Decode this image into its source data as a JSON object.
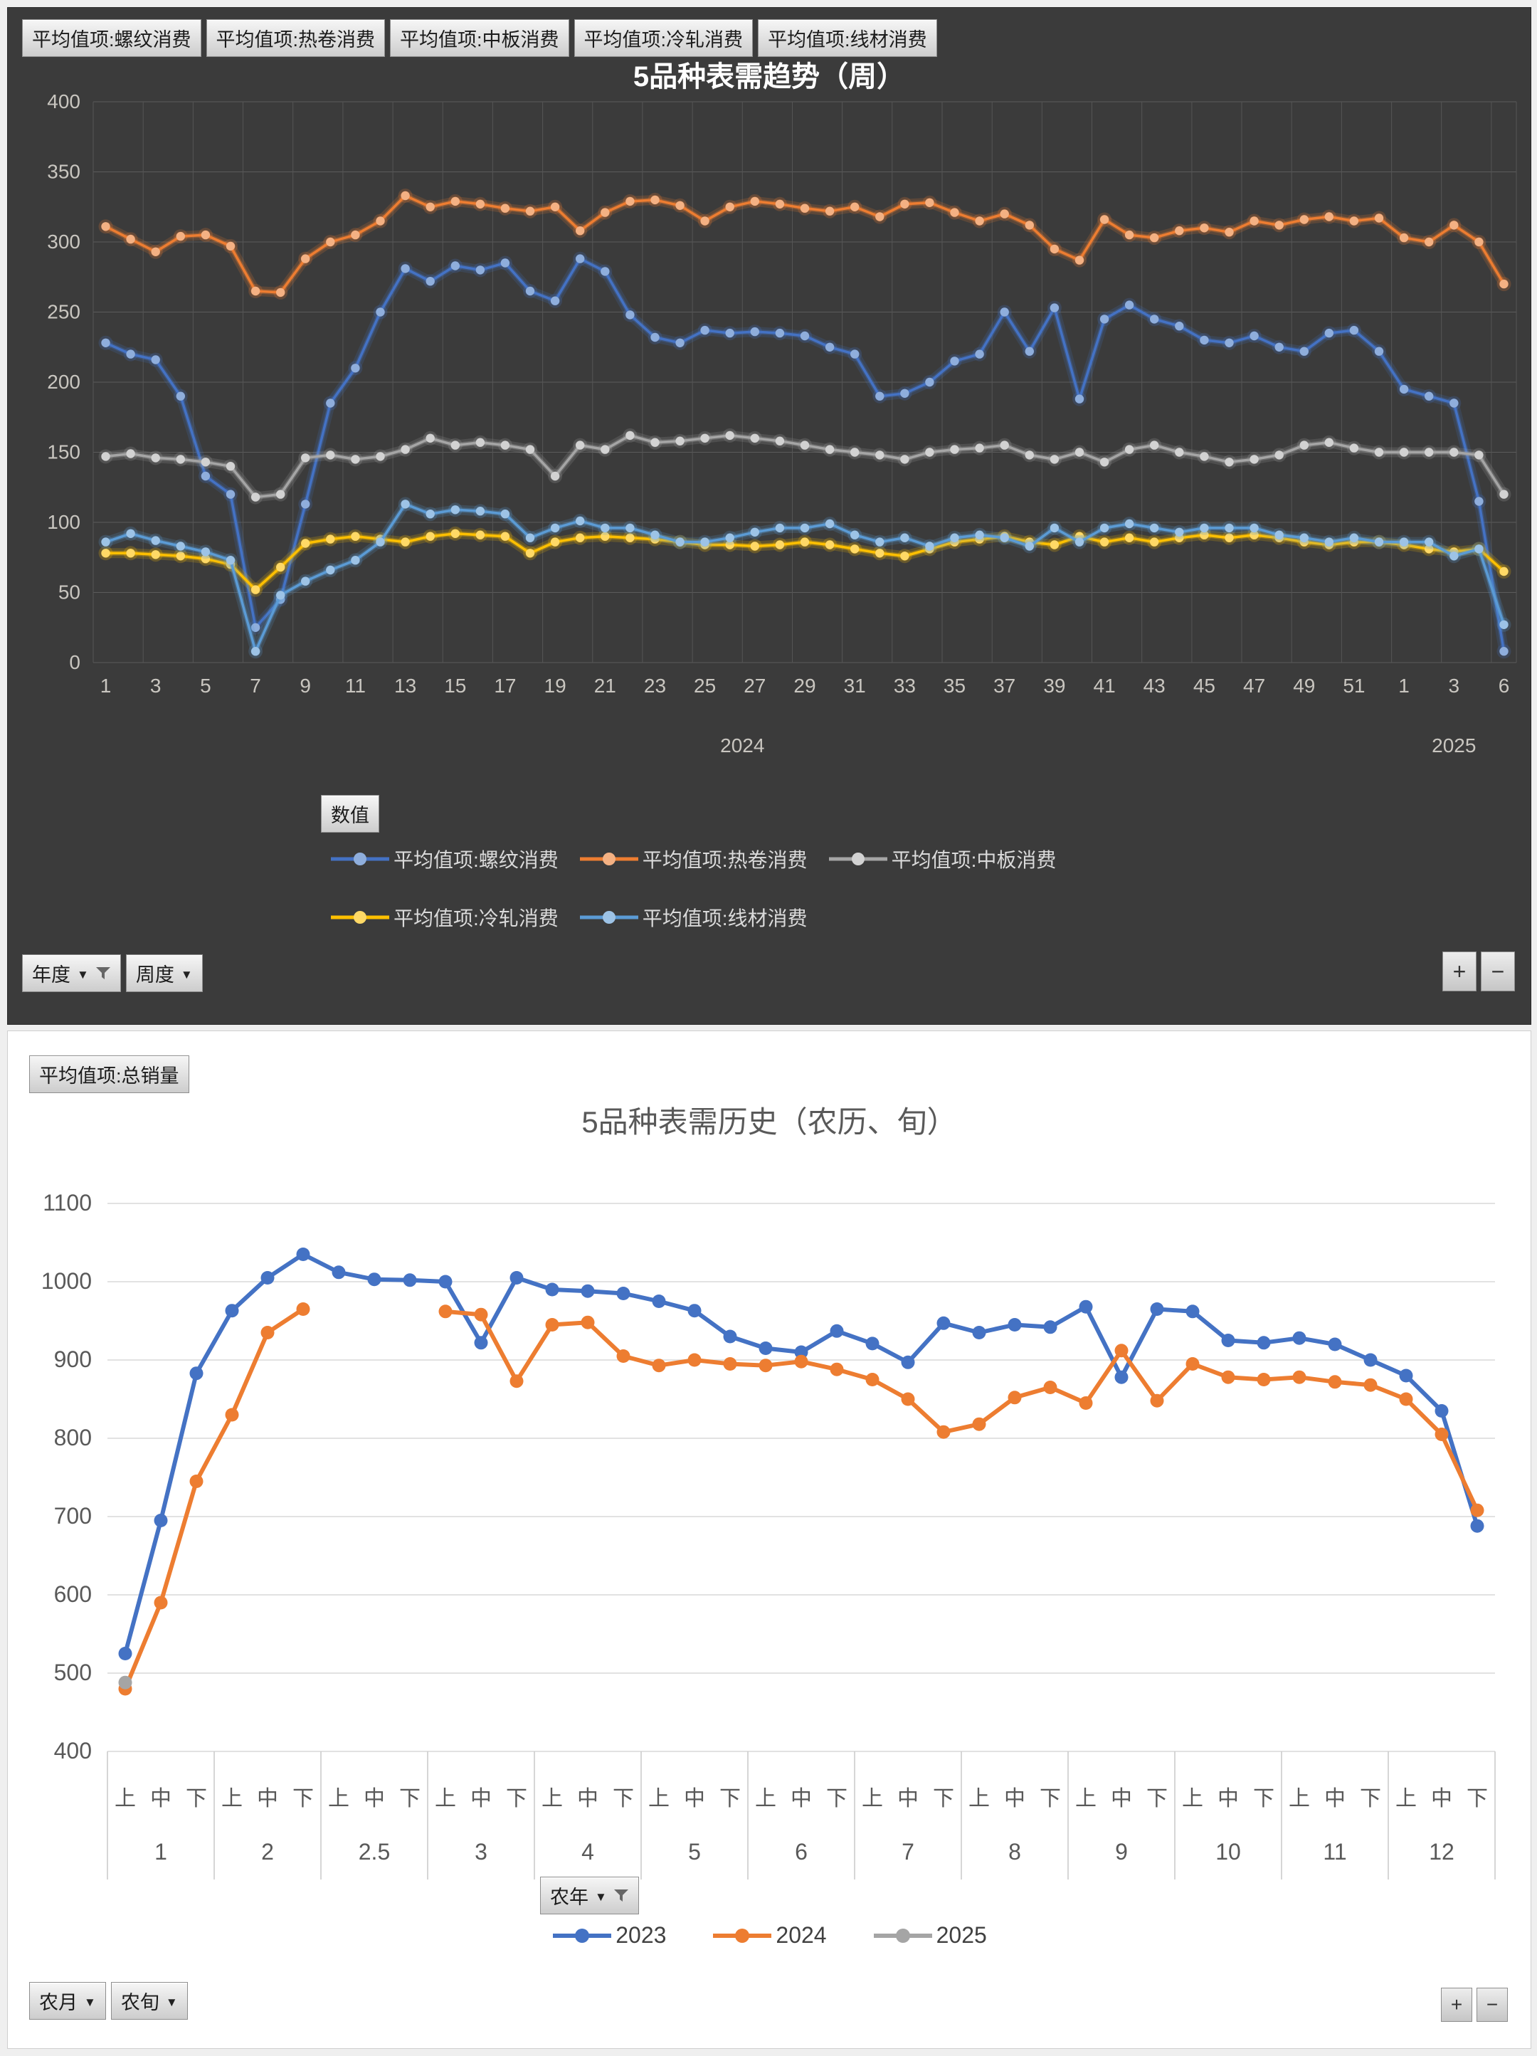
{
  "top_panel": {
    "field_buttons": [
      "平均值项:螺纹消费",
      "平均值项:热卷消费",
      "平均值项:中板消费",
      "平均值项:冷轧消费",
      "平均值项:线材消费"
    ],
    "legend_button": "数值",
    "axis_field_buttons": [
      {
        "label": "年度",
        "filtered": true
      },
      {
        "label": "周度",
        "filtered": false
      }
    ],
    "zoom_in": "+",
    "zoom_out": "−",
    "background": "#3B3B3B",
    "text_color": "#C9C6C0"
  },
  "bottom_panel": {
    "field_button": "平均值项:总销量",
    "filter_field_button": {
      "label": "农年",
      "filtered": true
    },
    "axis_field_buttons": [
      {
        "label": "农月",
        "filtered": false
      },
      {
        "label": "农旬",
        "filtered": false
      }
    ],
    "zoom_in": "+",
    "zoom_out": "−",
    "background": "#FFFFFF",
    "text_color": "#595959"
  },
  "chart_data": [
    {
      "id": "weekly-trend",
      "type": "line",
      "title": "5品种表需趋势（周）",
      "ylabel": "",
      "xlabel": "",
      "ylim": [
        0,
        400
      ],
      "ytick_step": 50,
      "grid": "both",
      "legend_position": "bottom",
      "year_groups": [
        {
          "label": "2024",
          "count": 52
        },
        {
          "label": "2025",
          "count": 5
        }
      ],
      "categories": [
        "1",
        "2",
        "3",
        "4",
        "5",
        "6",
        "7",
        "8",
        "9",
        "10",
        "11",
        "12",
        "13",
        "14",
        "15",
        "16",
        "17",
        "18",
        "19",
        "20",
        "21",
        "22",
        "23",
        "24",
        "25",
        "26",
        "27",
        "28",
        "29",
        "30",
        "31",
        "32",
        "33",
        "34",
        "35",
        "36",
        "37",
        "38",
        "39",
        "40",
        "41",
        "42",
        "43",
        "44",
        "45",
        "46",
        "47",
        "48",
        "49",
        "50",
        "51",
        "52",
        "1",
        "2",
        "3",
        "4",
        "6"
      ],
      "series": [
        {
          "name": "平均值项:螺纹消费",
          "color": "#4472C4",
          "marker_color": "#8FAEDC",
          "values": [
            228,
            220,
            216,
            190,
            133,
            120,
            25,
            45,
            113,
            185,
            210,
            250,
            281,
            272,
            283,
            280,
            285,
            265,
            258,
            288,
            279,
            248,
            232,
            228,
            237,
            235,
            236,
            235,
            233,
            225,
            220,
            190,
            192,
            200,
            215,
            220,
            250,
            222,
            253,
            188,
            245,
            255,
            245,
            240,
            230,
            228,
            233,
            225,
            222,
            235,
            237,
            222,
            195,
            190,
            185,
            115,
            8
          ]
        },
        {
          "name": "平均值项:热卷消费",
          "color": "#ED7D31",
          "marker_color": "#F4B183",
          "values": [
            311,
            302,
            293,
            304,
            305,
            297,
            265,
            264,
            288,
            300,
            305,
            315,
            333,
            325,
            329,
            327,
            324,
            322,
            325,
            308,
            321,
            329,
            330,
            326,
            315,
            325,
            329,
            327,
            324,
            322,
            325,
            318,
            327,
            328,
            321,
            315,
            320,
            312,
            295,
            287,
            316,
            305,
            303,
            308,
            310,
            307,
            315,
            312,
            316,
            318,
            315,
            317,
            303,
            300,
            312,
            300,
            270
          ]
        },
        {
          "name": "平均值项:中板消费",
          "color": "#A5A5A5",
          "marker_color": "#D2D2D2",
          "values": [
            147,
            149,
            146,
            145,
            143,
            140,
            118,
            120,
            146,
            148,
            145,
            147,
            152,
            160,
            155,
            157,
            155,
            152,
            133,
            155,
            152,
            162,
            157,
            158,
            160,
            162,
            160,
            158,
            155,
            152,
            150,
            148,
            145,
            150,
            152,
            153,
            155,
            148,
            145,
            150,
            143,
            152,
            155,
            150,
            147,
            143,
            145,
            148,
            155,
            157,
            153,
            150,
            150,
            150,
            150,
            148,
            120
          ]
        },
        {
          "name": "平均值项:冷轧消费",
          "color": "#FFC000",
          "marker_color": "#FFD966",
          "values": [
            78,
            78,
            77,
            76,
            74,
            70,
            52,
            68,
            85,
            88,
            90,
            88,
            86,
            90,
            92,
            91,
            90,
            78,
            86,
            89,
            90,
            89,
            88,
            86,
            84,
            84,
            83,
            84,
            86,
            84,
            81,
            78,
            76,
            81,
            86,
            88,
            90,
            86,
            84,
            90,
            86,
            89,
            86,
            89,
            91,
            89,
            91,
            89,
            86,
            84,
            86,
            86,
            84,
            81,
            79,
            81,
            65
          ]
        },
        {
          "name": "平均值项:线材消费",
          "color": "#5B9BD5",
          "marker_color": "#9DC3E6",
          "values": [
            86,
            92,
            87,
            83,
            79,
            73,
            8,
            48,
            58,
            66,
            73,
            86,
            113,
            106,
            109,
            108,
            106,
            89,
            96,
            101,
            96,
            96,
            91,
            86,
            86,
            89,
            93,
            96,
            96,
            99,
            91,
            86,
            89,
            83,
            89,
            91,
            89,
            83,
            96,
            86,
            96,
            99,
            96,
            93,
            96,
            96,
            96,
            91,
            89,
            86,
            89,
            86,
            86,
            86,
            76,
            81,
            27
          ]
        }
      ]
    },
    {
      "id": "lunar-history",
      "type": "line",
      "title": "5品种表需历史（农历、旬）",
      "ylabel": "",
      "xlabel": "",
      "ylim": [
        400,
        1100
      ],
      "ytick_step": 100,
      "grid": "horizontal",
      "legend_position": "bottom",
      "months": [
        "1",
        "2",
        "2.5",
        "3",
        "4",
        "5",
        "6",
        "7",
        "8",
        "9",
        "10",
        "11",
        "12"
      ],
      "subcats": [
        "上",
        "中",
        "下"
      ],
      "series": [
        {
          "name": "2023",
          "color": "#4472C4",
          "values": [
            525,
            695,
            883,
            963,
            1005,
            1035,
            1012,
            1003,
            1002,
            1000,
            922,
            1005,
            990,
            988,
            985,
            975,
            963,
            930,
            915,
            910,
            937,
            921,
            897,
            947,
            935,
            945,
            942,
            968,
            878,
            965,
            962,
            925,
            922,
            928,
            920,
            900,
            880,
            835,
            688
          ]
        },
        {
          "name": "2024",
          "color": "#ED7D31",
          "values": [
            480,
            590,
            745,
            830,
            935,
            965,
            null,
            null,
            null,
            962,
            958,
            873,
            945,
            948,
            905,
            893,
            900,
            895,
            893,
            898,
            888,
            875,
            850,
            808,
            818,
            852,
            865,
            845,
            912,
            848,
            895,
            878,
            875,
            878,
            872,
            868,
            850,
            805,
            708
          ]
        },
        {
          "name": "2025",
          "color": "#A5A5A5",
          "values": [
            488,
            null,
            null,
            null,
            null,
            null,
            null,
            null,
            null,
            null,
            null,
            null,
            null,
            null,
            null,
            null,
            null,
            null,
            null,
            null,
            null,
            null,
            null,
            null,
            null,
            null,
            null,
            null,
            null,
            null,
            null,
            null,
            null,
            null,
            null,
            null,
            null,
            null,
            null
          ]
        }
      ]
    }
  ]
}
